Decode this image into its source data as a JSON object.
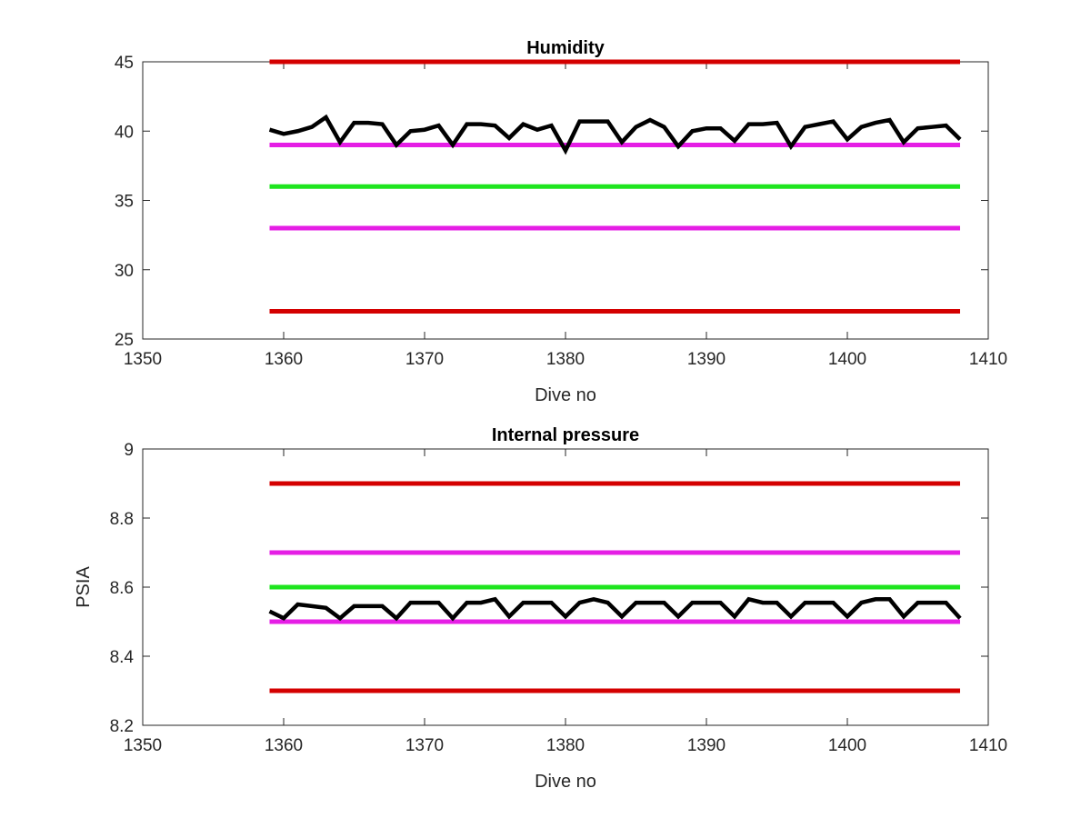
{
  "chart_data": [
    {
      "type": "line",
      "title": "Humidity",
      "xlabel": "Dive no",
      "ylabel": "",
      "xlim": [
        1350,
        1410
      ],
      "ylim": [
        25,
        45
      ],
      "xticks": [
        1350,
        1360,
        1370,
        1380,
        1390,
        1400,
        1410
      ],
      "yticks": [
        25,
        30,
        35,
        40,
        45
      ],
      "grid": false,
      "series": [
        {
          "color": "#000000",
          "x": [
            1359,
            1360,
            1361,
            1362,
            1363,
            1364,
            1365,
            1366,
            1367,
            1368,
            1369,
            1370,
            1371,
            1372,
            1373,
            1374,
            1375,
            1376,
            1377,
            1378,
            1379,
            1380,
            1381,
            1382,
            1383,
            1384,
            1385,
            1386,
            1387,
            1388,
            1389,
            1390,
            1391,
            1392,
            1393,
            1394,
            1395,
            1396,
            1397,
            1398,
            1399,
            1400,
            1401,
            1402,
            1403,
            1404,
            1405,
            1406,
            1407,
            1408
          ],
          "values": [
            40.1,
            39.8,
            40.0,
            40.3,
            41.0,
            39.2,
            40.6,
            40.6,
            40.5,
            39.0,
            40.0,
            40.1,
            40.4,
            39.0,
            40.5,
            40.5,
            40.4,
            39.5,
            40.5,
            40.1,
            40.4,
            38.6,
            40.7,
            40.7,
            40.7,
            39.2,
            40.3,
            40.8,
            40.3,
            38.9,
            40.0,
            40.2,
            40.2,
            39.3,
            40.5,
            40.5,
            40.6,
            38.9,
            40.3,
            40.5,
            40.7,
            39.4,
            40.3,
            40.6,
            40.8,
            39.2,
            40.2,
            40.3,
            40.4,
            39.4
          ]
        }
      ],
      "reference_lines": [
        {
          "y": 45,
          "x": [
            1359,
            1408
          ],
          "color": "#d40000"
        },
        {
          "y": 39,
          "x": [
            1359,
            1408
          ],
          "color": "#e51ee5"
        },
        {
          "y": 36,
          "x": [
            1359,
            1408
          ],
          "color": "#1ee51e"
        },
        {
          "y": 33,
          "x": [
            1359,
            1408
          ],
          "color": "#e51ee5"
        },
        {
          "y": 27,
          "x": [
            1359,
            1408
          ],
          "color": "#d40000"
        }
      ]
    },
    {
      "type": "line",
      "title": "Internal pressure",
      "xlabel": "Dive no",
      "ylabel": "PSIA",
      "xlim": [
        1350,
        1410
      ],
      "ylim": [
        8.2,
        9
      ],
      "xticks": [
        1350,
        1360,
        1370,
        1380,
        1390,
        1400,
        1410
      ],
      "yticks": [
        8.2,
        8.4,
        8.6,
        8.8,
        9
      ],
      "grid": false,
      "series": [
        {
          "color": "#000000",
          "x": [
            1359,
            1360,
            1361,
            1362,
            1363,
            1364,
            1365,
            1366,
            1367,
            1368,
            1369,
            1370,
            1371,
            1372,
            1373,
            1374,
            1375,
            1376,
            1377,
            1378,
            1379,
            1380,
            1381,
            1382,
            1383,
            1384,
            1385,
            1386,
            1387,
            1388,
            1389,
            1390,
            1391,
            1392,
            1393,
            1394,
            1395,
            1396,
            1397,
            1398,
            1399,
            1400,
            1401,
            1402,
            1403,
            1404,
            1405,
            1406,
            1407,
            1408
          ],
          "values": [
            8.53,
            8.51,
            8.55,
            8.545,
            8.54,
            8.51,
            8.545,
            8.545,
            8.545,
            8.51,
            8.555,
            8.555,
            8.555,
            8.51,
            8.555,
            8.555,
            8.565,
            8.515,
            8.555,
            8.555,
            8.555,
            8.515,
            8.555,
            8.565,
            8.555,
            8.515,
            8.555,
            8.555,
            8.555,
            8.515,
            8.555,
            8.555,
            8.555,
            8.515,
            8.565,
            8.555,
            8.555,
            8.515,
            8.555,
            8.555,
            8.555,
            8.515,
            8.555,
            8.565,
            8.565,
            8.515,
            8.555,
            8.555,
            8.555,
            8.51
          ]
        }
      ],
      "reference_lines": [
        {
          "y": 8.9,
          "x": [
            1359,
            1408
          ],
          "color": "#d40000"
        },
        {
          "y": 8.7,
          "x": [
            1359,
            1408
          ],
          "color": "#e51ee5"
        },
        {
          "y": 8.6,
          "x": [
            1359,
            1408
          ],
          "color": "#1ee51e"
        },
        {
          "y": 8.5,
          "x": [
            1359,
            1408
          ],
          "color": "#e51ee5"
        },
        {
          "y": 8.3,
          "x": [
            1359,
            1408
          ],
          "color": "#d40000"
        }
      ]
    }
  ]
}
